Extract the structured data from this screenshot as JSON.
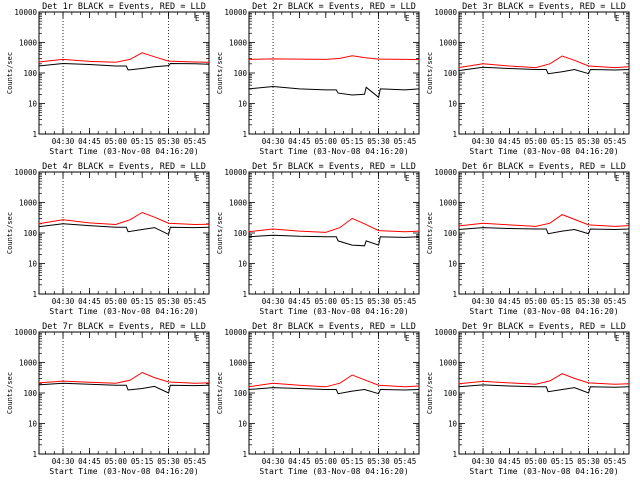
{
  "figure": {
    "background": "#ffffff",
    "events_color": "#000000",
    "lld_color": "#ff0000"
  },
  "chart_data": [
    {
      "type": "line",
      "title": "Det 1r BLACK = Events, RED = LLD",
      "ylabel": "Counts/sec",
      "xlabel": "Start Time (03-Nov-08 04:16:20)",
      "x_ticks": [
        "04:30",
        "04:45",
        "05:00",
        "05:15",
        "05:30",
        "05:45"
      ],
      "y_ticks": [
        "1",
        "10",
        "100",
        "1000",
        "10000"
      ],
      "yscale": "log",
      "ylim": [
        1,
        10000
      ],
      "xlim": [
        "04:16:20",
        "05:53"
      ],
      "vlines": [
        "04:30",
        "05:30"
      ],
      "corner_mark": "E",
      "series": [
        {
          "name": "Events",
          "color": "#000000",
          "x": [
            "04:16",
            "04:30",
            "04:45",
            "05:00",
            "05:06",
            "05:07",
            "05:15",
            "05:22",
            "05:30",
            "05:31",
            "05:45",
            "05:53"
          ],
          "values": [
            170,
            205,
            190,
            170,
            170,
            125,
            140,
            160,
            175,
            205,
            200,
            195
          ]
        },
        {
          "name": "LLD",
          "color": "#ff0000",
          "x": [
            "04:16",
            "04:30",
            "04:45",
            "05:00",
            "05:08",
            "05:15",
            "05:22",
            "05:30",
            "05:45",
            "05:53"
          ],
          "values": [
            230,
            280,
            240,
            225,
            280,
            460,
            340,
            245,
            230,
            225
          ]
        }
      ]
    },
    {
      "type": "line",
      "title": "Det 2r BLACK = Events, RED = LLD",
      "ylabel": "Counts/sec",
      "xlabel": "Start Time (03-Nov-08 04:16:20)",
      "x_ticks": [
        "04:30",
        "04:45",
        "05:00",
        "05:15",
        "05:30",
        "05:45"
      ],
      "y_ticks": [
        "1",
        "10",
        "100",
        "1000",
        "10000"
      ],
      "yscale": "log",
      "ylim": [
        1,
        10000
      ],
      "xlim": [
        "04:16:20",
        "05:53"
      ],
      "vlines": [
        "04:30",
        "05:30"
      ],
      "corner_mark": "E",
      "series": [
        {
          "name": "Events",
          "color": "#000000",
          "x": [
            "04:16",
            "04:30",
            "04:45",
            "05:00",
            "05:06",
            "05:07",
            "05:15",
            "05:22",
            "05:23",
            "05:30",
            "05:31",
            "05:45",
            "05:53"
          ],
          "values": [
            30,
            36,
            30,
            28,
            28,
            22,
            19,
            20,
            34,
            16,
            30,
            28,
            30
          ]
        },
        {
          "name": "LLD",
          "color": "#ff0000",
          "x": [
            "04:16",
            "04:30",
            "04:45",
            "05:00",
            "05:08",
            "05:15",
            "05:22",
            "05:30",
            "05:45",
            "05:53"
          ],
          "values": [
            280,
            290,
            285,
            280,
            300,
            370,
            320,
            285,
            280,
            275
          ]
        }
      ]
    },
    {
      "type": "line",
      "title": "Det 3r BLACK = Events, RED = LLD",
      "ylabel": "Counts/sec",
      "xlabel": "Start Time (03-Nov-08 04:16:20)",
      "x_ticks": [
        "04:30",
        "04:45",
        "05:00",
        "05:15",
        "05:30",
        "05:45"
      ],
      "y_ticks": [
        "1",
        "10",
        "100",
        "1000",
        "10000"
      ],
      "yscale": "log",
      "ylim": [
        1,
        10000
      ],
      "xlim": [
        "04:16:20",
        "05:53"
      ],
      "vlines": [
        "04:30",
        "05:30"
      ],
      "corner_mark": "E",
      "series": [
        {
          "name": "Events",
          "color": "#000000",
          "x": [
            "04:16",
            "04:30",
            "04:45",
            "05:00",
            "05:06",
            "05:07",
            "05:15",
            "05:22",
            "05:30",
            "05:31",
            "05:45",
            "05:53"
          ],
          "values": [
            120,
            155,
            140,
            130,
            130,
            95,
            110,
            130,
            95,
            130,
            125,
            130
          ]
        },
        {
          "name": "LLD",
          "color": "#ff0000",
          "x": [
            "04:16",
            "04:30",
            "04:45",
            "05:00",
            "05:08",
            "05:15",
            "05:22",
            "05:30",
            "05:45",
            "05:53"
          ],
          "values": [
            150,
            200,
            170,
            150,
            200,
            360,
            260,
            170,
            150,
            160
          ]
        }
      ]
    },
    {
      "type": "line",
      "title": "Det 4r BLACK = Events, RED = LLD",
      "ylabel": "Counts/sec",
      "xlabel": "Start Time (03-Nov-08 04:16:20)",
      "x_ticks": [
        "04:30",
        "04:45",
        "05:00",
        "05:15",
        "05:30",
        "05:45"
      ],
      "y_ticks": [
        "1",
        "10",
        "100",
        "1000",
        "10000"
      ],
      "yscale": "log",
      "ylim": [
        1,
        10000
      ],
      "xlim": [
        "04:16:20",
        "05:53"
      ],
      "vlines": [
        "04:30",
        "05:30"
      ],
      "corner_mark": "E",
      "series": [
        {
          "name": "Events",
          "color": "#000000",
          "x": [
            "04:16",
            "04:30",
            "04:45",
            "05:00",
            "05:06",
            "05:07",
            "05:15",
            "05:22",
            "05:30",
            "05:31",
            "05:45",
            "05:53"
          ],
          "values": [
            160,
            200,
            175,
            155,
            155,
            110,
            130,
            150,
            90,
            155,
            150,
            155
          ]
        },
        {
          "name": "LLD",
          "color": "#ff0000",
          "x": [
            "04:16",
            "04:30",
            "04:45",
            "05:00",
            "05:08",
            "05:15",
            "05:22",
            "05:30",
            "05:45",
            "05:53"
          ],
          "values": [
            200,
            270,
            215,
            190,
            270,
            470,
            330,
            210,
            190,
            195
          ]
        }
      ]
    },
    {
      "type": "line",
      "title": "Det 5r BLACK = Events, RED = LLD",
      "ylabel": "Counts/sec",
      "xlabel": "Start Time (03-Nov-08 04:16:20)",
      "x_ticks": [
        "04:30",
        "04:45",
        "05:00",
        "05:15",
        "05:30",
        "05:45"
      ],
      "y_ticks": [
        "1",
        "10",
        "100",
        "1000",
        "10000"
      ],
      "yscale": "log",
      "ylim": [
        1,
        10000
      ],
      "xlim": [
        "04:16:20",
        "05:53"
      ],
      "vlines": [
        "04:30",
        "05:30"
      ],
      "corner_mark": "E",
      "series": [
        {
          "name": "Events",
          "color": "#000000",
          "x": [
            "04:16",
            "04:30",
            "04:45",
            "05:00",
            "05:06",
            "05:07",
            "05:15",
            "05:22",
            "05:23",
            "05:30",
            "05:31",
            "05:45",
            "05:53"
          ],
          "values": [
            75,
            85,
            78,
            75,
            75,
            55,
            40,
            38,
            55,
            40,
            75,
            72,
            75
          ]
        },
        {
          "name": "LLD",
          "color": "#ff0000",
          "x": [
            "04:16",
            "04:30",
            "04:45",
            "05:00",
            "05:08",
            "05:15",
            "05:22",
            "05:30",
            "05:45",
            "05:53"
          ],
          "values": [
            110,
            135,
            115,
            105,
            150,
            300,
            200,
            120,
            110,
            115
          ]
        }
      ]
    },
    {
      "type": "line",
      "title": "Det 6r BLACK = Events, RED = LLD",
      "ylabel": "Counts/sec",
      "xlabel": "Start Time (03-Nov-08 04:16:20)",
      "x_ticks": [
        "04:30",
        "04:45",
        "05:00",
        "05:15",
        "05:30",
        "05:45"
      ],
      "y_ticks": [
        "1",
        "10",
        "100",
        "1000",
        "10000"
      ],
      "yscale": "log",
      "ylim": [
        1,
        10000
      ],
      "xlim": [
        "04:16:20",
        "05:53"
      ],
      "vlines": [
        "04:30",
        "05:30"
      ],
      "corner_mark": "E",
      "series": [
        {
          "name": "Events",
          "color": "#000000",
          "x": [
            "04:16",
            "04:30",
            "04:45",
            "05:00",
            "05:06",
            "05:07",
            "05:15",
            "05:22",
            "05:30",
            "05:31",
            "05:45",
            "05:53"
          ],
          "values": [
            130,
            150,
            140,
            135,
            135,
            95,
            115,
            130,
            95,
            135,
            130,
            135
          ]
        },
        {
          "name": "LLD",
          "color": "#ff0000",
          "x": [
            "04:16",
            "04:30",
            "04:45",
            "05:00",
            "05:08",
            "05:15",
            "05:22",
            "05:30",
            "05:45",
            "05:53"
          ],
          "values": [
            170,
            210,
            185,
            165,
            210,
            400,
            280,
            185,
            165,
            175
          ]
        }
      ]
    },
    {
      "type": "line",
      "title": "Det 7r BLACK = Events, RED = LLD",
      "ylabel": "Counts/sec",
      "xlabel": "Start Time (03-Nov-08 04:16:20)",
      "x_ticks": [
        "04:30",
        "04:45",
        "05:00",
        "05:15",
        "05:30",
        "05:45"
      ],
      "y_ticks": [
        "1",
        "10",
        "100",
        "1000",
        "10000"
      ],
      "yscale": "log",
      "ylim": [
        1,
        10000
      ],
      "xlim": [
        "04:16:20",
        "05:53"
      ],
      "vlines": [
        "04:30",
        "05:30"
      ],
      "corner_mark": "E",
      "series": [
        {
          "name": "Events",
          "color": "#000000",
          "x": [
            "04:16",
            "04:30",
            "04:45",
            "05:00",
            "05:06",
            "05:07",
            "05:15",
            "05:22",
            "05:30",
            "05:31",
            "05:45",
            "05:53"
          ],
          "values": [
            185,
            210,
            195,
            180,
            180,
            125,
            140,
            165,
            100,
            180,
            175,
            180
          ]
        },
        {
          "name": "LLD",
          "color": "#ff0000",
          "x": [
            "04:16",
            "04:30",
            "04:45",
            "05:00",
            "05:08",
            "05:15",
            "05:22",
            "05:30",
            "05:45",
            "05:53"
          ],
          "values": [
            215,
            245,
            225,
            210,
            260,
            470,
            320,
            230,
            210,
            215
          ]
        }
      ]
    },
    {
      "type": "line",
      "title": "Det 8r BLACK = Events, RED = LLD",
      "ylabel": "Counts/sec",
      "xlabel": "Start Time (03-Nov-08 04:16:20)",
      "x_ticks": [
        "04:30",
        "04:45",
        "05:00",
        "05:15",
        "05:30",
        "05:45"
      ],
      "y_ticks": [
        "1",
        "10",
        "100",
        "1000",
        "10000"
      ],
      "yscale": "log",
      "ylim": [
        1,
        10000
      ],
      "xlim": [
        "04:16:20",
        "05:53"
      ],
      "vlines": [
        "04:30",
        "05:30"
      ],
      "corner_mark": "E",
      "series": [
        {
          "name": "Events",
          "color": "#000000",
          "x": [
            "04:16",
            "04:30",
            "04:45",
            "05:00",
            "05:06",
            "05:07",
            "05:15",
            "05:22",
            "05:30",
            "05:31",
            "05:45",
            "05:53"
          ],
          "values": [
            130,
            150,
            140,
            130,
            130,
            95,
            115,
            130,
            95,
            130,
            125,
            130
          ]
        },
        {
          "name": "LLD",
          "color": "#ff0000",
          "x": [
            "04:16",
            "04:30",
            "04:45",
            "05:00",
            "05:08",
            "05:15",
            "05:22",
            "05:30",
            "05:45",
            "05:53"
          ],
          "values": [
            160,
            210,
            180,
            160,
            210,
            390,
            270,
            180,
            160,
            170
          ]
        }
      ]
    },
    {
      "type": "line",
      "title": "Det 9r BLACK = Events, RED = LLD",
      "ylabel": "Counts/sec",
      "xlabel": "Start Time (03-Nov-08 04:16:20)",
      "x_ticks": [
        "04:30",
        "04:45",
        "05:00",
        "05:15",
        "05:30",
        "05:45"
      ],
      "y_ticks": [
        "1",
        "10",
        "100",
        "1000",
        "10000"
      ],
      "yscale": "log",
      "ylim": [
        1,
        10000
      ],
      "xlim": [
        "04:16:20",
        "05:53"
      ],
      "vlines": [
        "04:30",
        "05:30"
      ],
      "corner_mark": "E",
      "series": [
        {
          "name": "Events",
          "color": "#000000",
          "x": [
            "04:16",
            "04:30",
            "04:45",
            "05:00",
            "05:06",
            "05:07",
            "05:15",
            "05:22",
            "05:30",
            "05:31",
            "05:45",
            "05:53"
          ],
          "values": [
            160,
            185,
            170,
            160,
            160,
            110,
            130,
            150,
            100,
            160,
            155,
            160
          ]
        },
        {
          "name": "LLD",
          "color": "#ff0000",
          "x": [
            "04:16",
            "04:30",
            "04:45",
            "05:00",
            "05:08",
            "05:15",
            "05:22",
            "05:30",
            "05:45",
            "05:53"
          ],
          "values": [
            200,
            240,
            215,
            195,
            250,
            430,
            300,
            215,
            195,
            200
          ]
        }
      ]
    }
  ]
}
